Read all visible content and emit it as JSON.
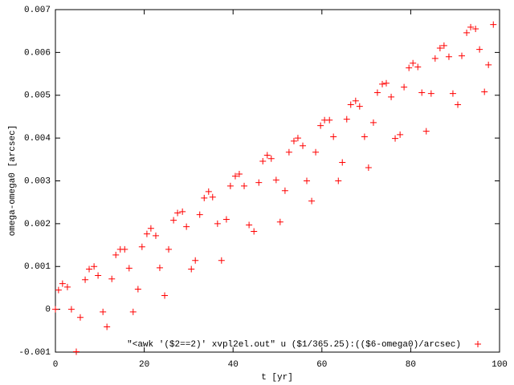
{
  "chart_data": {
    "type": "scatter",
    "xlabel": "t [yr]",
    "ylabel": "omega-omega0 [arcsec]",
    "xlim": [
      0,
      100
    ],
    "xticks": [
      0,
      20,
      40,
      60,
      80,
      100
    ],
    "ylim": [
      -0.001,
      0.007
    ],
    "yticks": [
      -0.001,
      0,
      0.001,
      0.002,
      0.003,
      0.004,
      0.005,
      0.006,
      0.007
    ],
    "legend": "upper-right-bottom",
    "x": [
      0,
      0.7,
      1.6,
      2.7,
      3.6,
      4.7,
      5.6,
      6.7,
      7.6,
      8.7,
      9.6,
      10.7,
      11.6,
      12.7,
      13.6,
      14.6,
      15.6,
      16.6,
      17.5,
      18.6,
      19.5,
      20.6,
      21.5,
      22.6,
      23.5,
      24.6,
      25.5,
      26.6,
      27.5,
      28.6,
      29.5,
      30.6,
      31.5,
      32.5,
      33.5,
      34.5,
      35.4,
      36.5,
      37.4,
      38.5,
      39.4,
      40.5,
      41.4,
      42.5,
      43.6,
      44.7,
      45.8,
      46.7,
      47.7,
      48.6,
      49.7,
      50.6,
      51.7,
      52.6,
      53.7,
      54.6,
      55.7,
      56.6,
      57.7,
      58.6,
      59.7,
      60.6,
      61.7,
      62.6,
      63.7,
      64.6,
      65.6,
      66.5,
      67.6,
      68.5,
      69.6,
      70.5,
      71.6,
      72.5,
      73.6,
      74.5,
      75.6,
      76.5,
      77.6,
      78.5,
      79.6,
      80.5,
      81.6,
      82.5,
      83.5,
      84.6,
      85.5,
      86.6,
      87.5,
      88.6,
      89.5,
      90.6,
      91.5,
      92.6,
      93.5,
      94.6,
      95.5,
      96.6,
      97.5,
      98.6
    ],
    "series": [
      {
        "name": "\"<awk '($2==2)' xvpl2el.out\" u ($1/365.25):(($6-omega0)/arcsec)",
        "color": "#ff0000",
        "values": [
          0,
          0.00045,
          0.0006,
          0.00052,
          0,
          -0.00099,
          -0.00019,
          0.00069,
          0.00094,
          0.001,
          0.00079,
          -6e-05,
          -0.00041,
          0.00071,
          0.00127,
          0.0014,
          0.0014,
          0.00096,
          -6e-05,
          0.00047,
          0.00146,
          0.00176,
          0.00189,
          0.00172,
          0.00097,
          0.00032,
          0.0014,
          0.00208,
          0.00225,
          0.00228,
          0.00193,
          0.00094,
          0.00114,
          0.00221,
          0.0026,
          0.00275,
          0.00262,
          0.002,
          0.00114,
          0.0021,
          0.00288,
          0.00311,
          0.00316,
          0.00288,
          0.00197,
          0.00182,
          0.00296,
          0.00346,
          0.0036,
          0.00352,
          0.00302,
          0.00204,
          0.00277,
          0.00367,
          0.00393,
          0.004,
          0.00382,
          0.003,
          0.00253,
          0.00367,
          0.00429,
          0.00442,
          0.00442,
          0.00403,
          0.003,
          0.00343,
          0.00444,
          0.00478,
          0.00487,
          0.00474,
          0.00403,
          0.00331,
          0.00436,
          0.00506,
          0.00526,
          0.00528,
          0.00496,
          0.00399,
          0.00408,
          0.00519,
          0.00564,
          0.00575,
          0.00566,
          0.00506,
          0.00416,
          0.00504,
          0.00586,
          0.0061,
          0.00616,
          0.0059,
          0.00504,
          0.00478,
          0.00592,
          0.00646,
          0.00659,
          0.00655,
          0.00607,
          0.00508,
          0.00571,
          0.00665
        ]
      }
    ]
  }
}
